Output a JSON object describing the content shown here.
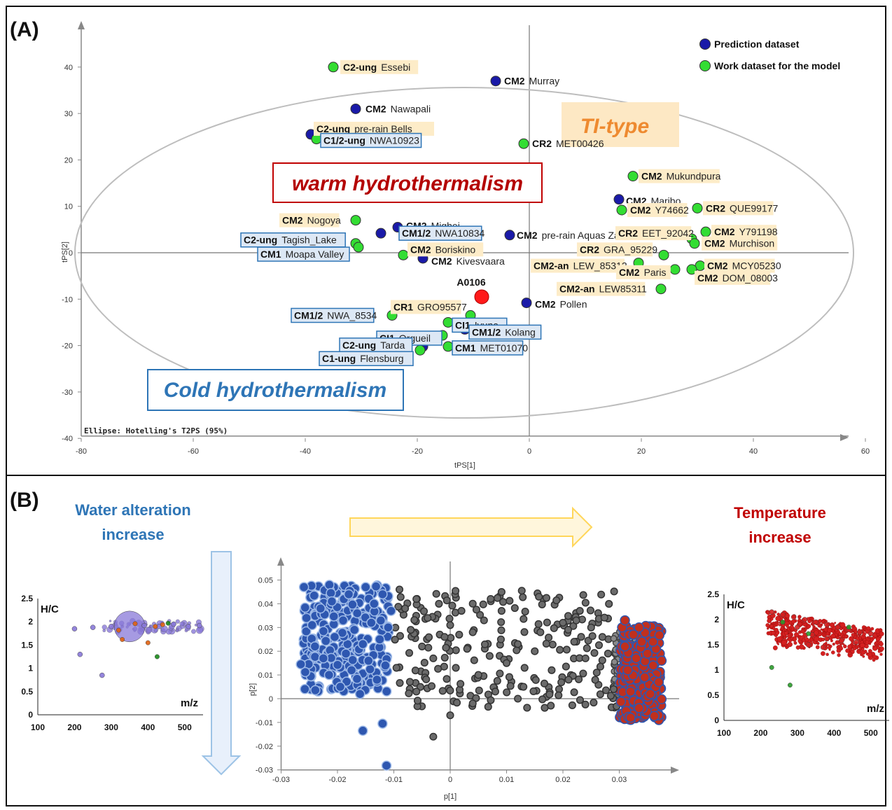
{
  "panel_a": {
    "label": "(A)",
    "ellipse_note": "Ellipse: Hotelling's T2PS (95%)",
    "legend": [
      {
        "label": "Prediction dataset",
        "color": "#1a1aa8"
      },
      {
        "label": "Work dataset for the model",
        "color": "#33dd33"
      }
    ],
    "annotations": {
      "ti_type": "TI-type",
      "warm": "warm hydrothermalism",
      "cold": "Cold hydrothermalism",
      "sample": "A0106"
    }
  },
  "panel_b": {
    "label": "(B)",
    "water_title": [
      "Water alteration",
      "increase"
    ],
    "temp_title": [
      "Temperature",
      "increase"
    ],
    "y_hc": "H/C",
    "x_mz": "m/z"
  },
  "chart_data": [
    {
      "type": "scatter",
      "xlabel": "tPS[1]",
      "ylabel": "tPS[2]",
      "xlim": [
        -80,
        70
      ],
      "ylim": [
        -40,
        48
      ],
      "x_ticks": [
        -80,
        -60,
        -40,
        -20,
        0,
        20,
        40,
        60
      ],
      "y_ticks": [
        -40,
        -30,
        -20,
        -10,
        0,
        10,
        20,
        30,
        40
      ],
      "series": [
        {
          "name": "Prediction dataset",
          "color": "#1a1aa8"
        },
        {
          "name": "Work dataset for the model",
          "color": "#33dd33"
        }
      ],
      "points": [
        {
          "x": -35,
          "y": 40,
          "s": 1,
          "type": "C2-ung",
          "name": "Essebi",
          "box": "tan"
        },
        {
          "x": -6,
          "y": 37,
          "s": 0,
          "type": "CM2",
          "name": "Murray",
          "box": "none"
        },
        {
          "x": -31,
          "y": 31,
          "s": 0,
          "type": "CM2",
          "name": "Nawapali",
          "box": "none"
        },
        {
          "x": -39,
          "y": 25.5,
          "s": 0,
          "type": "C2-ung",
          "name": "pre-rain Bells",
          "box": "tan"
        },
        {
          "x": -38,
          "y": 24.5,
          "s": 1,
          "type": "C1/2-ung",
          "name": "NWA10923",
          "box": "blue"
        },
        {
          "x": -1,
          "y": 23.5,
          "s": 1,
          "type": "CR2",
          "name": "MET00426",
          "box": "none"
        },
        {
          "x": 18.5,
          "y": 16.5,
          "s": 1,
          "type": "CM2",
          "name": "Mukundpura",
          "box": "tan"
        },
        {
          "x": 16,
          "y": 11.5,
          "s": 0,
          "type": "CM2",
          "name": "Maribo",
          "box": "none"
        },
        {
          "x": 16.5,
          "y": 9.2,
          "s": 1,
          "type": "CM2",
          "name": "Y74662",
          "box": "tan"
        },
        {
          "x": 30,
          "y": 9.6,
          "s": 1,
          "type": "CR2",
          "name": "QUE99177",
          "box": "tan"
        },
        {
          "x": -31,
          "y": 7,
          "s": 1,
          "type": "CM2",
          "name": "Nogoya",
          "box": "tan"
        },
        {
          "x": -23.5,
          "y": 5.5,
          "s": 0,
          "type": "CM2",
          "name": "Mighei",
          "box": "none"
        },
        {
          "x": -26.5,
          "y": 4.2,
          "s": 0,
          "type": "CM1/2",
          "name": "NWA10834",
          "box": "blue"
        },
        {
          "x": -3.5,
          "y": 3.8,
          "s": 0,
          "type": "CM2",
          "name": "pre-rain Aquas Zarcas",
          "box": "none"
        },
        {
          "x": 29,
          "y": 3,
          "s": 1,
          "type": "CR2",
          "name": "EET_92042",
          "box": "tan"
        },
        {
          "x": 31.5,
          "y": 4.5,
          "s": 1,
          "type": "CM2",
          "name": "Y791198",
          "box": "tan"
        },
        {
          "x": 29.5,
          "y": 2,
          "s": 1,
          "type": "CM2",
          "name": "Murchison",
          "box": "tan"
        },
        {
          "x": -31,
          "y": 2,
          "s": 1,
          "type": "C2-ung",
          "name": "Tagish_Lake",
          "box": "blue"
        },
        {
          "x": -30.5,
          "y": 1.2,
          "s": 1,
          "type": "CM1",
          "name": "Moapa Valley",
          "box": "blue"
        },
        {
          "x": -22.5,
          "y": -0.5,
          "s": 1,
          "type": "CM2",
          "name": "Boriskino",
          "box": "tan"
        },
        {
          "x": -19,
          "y": -1.2,
          "s": 0,
          "type": "CM2",
          "name": "Kivesvaara",
          "box": "none"
        },
        {
          "x": 24,
          "y": -0.5,
          "s": 1,
          "type": "CR2",
          "name": "GRA_95229",
          "box": "tan"
        },
        {
          "x": 19.5,
          "y": -2.2,
          "s": 1,
          "type": "CM2-an",
          "name": "LEW_85312",
          "box": "tan"
        },
        {
          "x": 30.5,
          "y": -2.8,
          "s": 1,
          "type": "CM2",
          "name": "MCY05230",
          "box": "tan"
        },
        {
          "x": 26,
          "y": -3.6,
          "s": 1,
          "type": "CM2",
          "name": "Paris",
          "box": "tan"
        },
        {
          "x": 29,
          "y": -3.6,
          "s": 1,
          "type": "CM2",
          "name": "DOM_08003",
          "box": "tan"
        },
        {
          "x": 23.5,
          "y": -7.8,
          "s": 1,
          "type": "CM2-an",
          "name": "LEW85311",
          "box": "tan"
        },
        {
          "x": -8.5,
          "y": -9.5,
          "s": 2,
          "type": "",
          "name": "A0106",
          "box": "none"
        },
        {
          "x": -0.5,
          "y": -10.8,
          "s": 0,
          "type": "CM2",
          "name": "Pollen",
          "box": "none"
        },
        {
          "x": -24.5,
          "y": -13.5,
          "s": 1,
          "type": "CM1/2",
          "name": "NWA_8534",
          "box": "blue"
        },
        {
          "x": -10.5,
          "y": -13.5,
          "s": 1,
          "type": "CR1",
          "name": "GRO95577",
          "box": "tan"
        },
        {
          "x": -14.5,
          "y": -15,
          "s": 1,
          "type": "CI1",
          "name": "Ivuna",
          "box": "blue"
        },
        {
          "x": -11.5,
          "y": -16.5,
          "s": 0,
          "type": "CM1/2",
          "name": "Kolang",
          "box": "blue"
        },
        {
          "x": -15.5,
          "y": -17.8,
          "s": 1,
          "type": "CI1",
          "name": "Orgueil",
          "box": "blue"
        },
        {
          "x": -19,
          "y": -20.2,
          "s": 0,
          "type": "C2-ung",
          "name": "Tarda",
          "box": "blue"
        },
        {
          "x": -14.5,
          "y": -20.2,
          "s": 1,
          "type": "CM1",
          "name": "MET01070",
          "box": "blue"
        },
        {
          "x": -19.5,
          "y": -21,
          "s": 1,
          "type": "C1-ung",
          "name": "Flensburg",
          "box": "blue"
        }
      ]
    },
    {
      "type": "scatter",
      "xlabel": "p[1]",
      "ylabel": "p[2]",
      "xlim": [
        -0.03,
        0.04
      ],
      "ylim": [
        -0.03,
        0.06
      ],
      "x_ticks": [
        -0.03,
        -0.02,
        -0.01,
        0,
        0.01,
        0.02,
        0.03
      ],
      "y_ticks": [
        -0.03,
        -0.02,
        -0.01,
        0,
        0.01,
        0.02,
        0.03,
        0.04,
        0.05
      ],
      "series": [
        {
          "name": "",
          "color": "#2e57b0",
          "points": [
            [
              -0.0265,
              0.0145
            ],
            [
              -0.0255,
              0.034
            ],
            [
              -0.0245,
              0.031
            ],
            [
              -0.024,
              0.022
            ],
            [
              -0.023,
              0.038
            ],
            [
              -0.0225,
              0.017
            ],
            [
              -0.0215,
              0.01
            ],
            [
              -0.021,
              0.041
            ],
            [
              -0.0205,
              0.026
            ],
            [
              -0.0195,
              0.005
            ],
            [
              -0.019,
              0.033
            ],
            [
              -0.0185,
              0.019
            ],
            [
              -0.018,
              0.044
            ],
            [
              -0.0175,
              0.012
            ],
            [
              -0.017,
              0.029
            ],
            [
              -0.0165,
              0.036
            ],
            [
              -0.016,
              0.002
            ],
            [
              -0.0155,
              0.023
            ],
            [
              -0.015,
              0.047
            ],
            [
              -0.0145,
              0.016
            ],
            [
              -0.014,
              0.032
            ],
            [
              -0.0135,
              0.04
            ],
            [
              -0.013,
              0.008
            ],
            [
              -0.0125,
              0.025
            ],
            [
              -0.012,
              0.044
            ],
            [
              -0.0115,
              0.014
            ],
            [
              -0.011,
              0.03
            ],
            [
              -0.0105,
              0.037
            ],
            [
              -0.0155,
              -0.0135
            ],
            [
              -0.012,
              -0.0105
            ],
            [
              -0.0113,
              -0.0282
            ]
          ]
        },
        {
          "name": "",
          "color": "#6b6b6b",
          "points": [
            [
              -0.009,
              0.046
            ],
            [
              -0.008,
              0.038
            ],
            [
              -0.007,
              0.029
            ],
            [
              -0.006,
              0.042
            ],
            [
              -0.005,
              0.022
            ],
            [
              -0.004,
              0.034
            ],
            [
              -0.003,
              0.017
            ],
            [
              -0.002,
              0.04
            ],
            [
              -0.001,
              0.026
            ],
            [
              0.0,
              0.031
            ],
            [
              0.001,
              0.013
            ],
            [
              0.002,
              0.037
            ],
            [
              0.003,
              0.021
            ],
            [
              0.004,
              0.028
            ],
            [
              0.005,
              0.01
            ],
            [
              0.006,
              0.033
            ],
            [
              0.007,
              0.018
            ],
            [
              0.008,
              0.003
            ],
            [
              0.009,
              0.025
            ],
            [
              0.01,
              0.015
            ],
            [
              0.012,
              0.023
            ],
            [
              0.013,
              0.005
            ],
            [
              0.015,
              0.02
            ],
            [
              0.016,
              0.028
            ],
            [
              0.018,
              0.012
            ],
            [
              0.02,
              0.032
            ],
            [
              0.021,
              0.008
            ],
            [
              0.022,
              0.024
            ],
            [
              0.023,
              0.037
            ],
            [
              0.024,
              0.017
            ],
            [
              0.025,
              0.03
            ],
            [
              0.026,
              0.011
            ],
            [
              0.027,
              0.026
            ],
            [
              0.028,
              0.019
            ],
            [
              0.029,
              0.004
            ],
            [
              -0.003,
              -0.016
            ],
            [
              0.0,
              -0.007
            ],
            [
              0.004,
              -0.002
            ],
            [
              -0.006,
              0.003
            ],
            [
              0.012,
              0.0
            ],
            [
              0.0127,
              0.0455
            ]
          ]
        },
        {
          "name": "",
          "color": "#c0301e",
          "points": [
            [
              0.0305,
              0.03
            ],
            [
              0.031,
              0.022
            ],
            [
              0.0315,
              0.012
            ],
            [
              0.032,
              0.003
            ],
            [
              0.0325,
              0.027
            ],
            [
              0.033,
              0.017
            ],
            [
              0.0335,
              -0.004
            ],
            [
              0.034,
              0.024
            ],
            [
              0.0345,
              0.009
            ],
            [
              0.035,
              0.019
            ],
            [
              0.0355,
              0.002
            ],
            [
              0.036,
              0.014
            ],
            [
              0.0365,
              0.021
            ],
            [
              0.037,
              0.007
            ],
            [
              0.0375,
              0.016
            ],
            [
              0.031,
              0.033
            ],
            [
              0.0335,
              0.03
            ],
            [
              0.032,
              -0.008
            ],
            [
              0.036,
              0.024
            ]
          ]
        }
      ]
    },
    {
      "type": "scatter",
      "xlabel": "m/z",
      "ylabel": "H/C",
      "xlim": [
        100,
        550
      ],
      "ylim": [
        0,
        2.5
      ],
      "x_ticks": [
        100,
        200,
        300,
        400,
        500
      ],
      "y_ticks": [
        0,
        0.5,
        1,
        1.5,
        2,
        2.5
      ],
      "series": [
        {
          "name": "",
          "color": "#8878d8",
          "points": [
            [
              350,
              1.9
            ],
            [
              300,
              1.9
            ],
            [
              390,
              1.92
            ],
            [
              430,
              1.9
            ],
            [
              470,
              1.95
            ],
            [
              510,
              1.9
            ],
            [
              540,
              1.92
            ],
            [
              250,
              1.88
            ],
            [
              200,
              1.85
            ],
            [
              215,
              1.3
            ],
            [
              275,
              0.85
            ]
          ]
        },
        {
          "name": "",
          "color": "#e06010",
          "points": [
            [
              365,
              1.96
            ],
            [
              320,
              1.82
            ],
            [
              420,
              1.9
            ],
            [
              440,
              1.94
            ],
            [
              330,
              1.62
            ],
            [
              400,
              1.55
            ]
          ]
        },
        {
          "name": "",
          "color": "#1a8a1a",
          "points": [
            [
              455,
              1.97
            ],
            [
              425,
              1.25
            ]
          ]
        }
      ]
    },
    {
      "type": "scatter",
      "xlabel": "m/z",
      "ylabel": "H/C",
      "xlim": [
        100,
        550
      ],
      "ylim": [
        0,
        2.5
      ],
      "x_ticks": [
        100,
        200,
        300,
        400,
        500
      ],
      "y_ticks": [
        0,
        0.5,
        1,
        1.5,
        2,
        2.5
      ],
      "series": [
        {
          "name": "",
          "color": "#d42020",
          "points": [
            [
              230,
              2.15
            ],
            [
              260,
              2.1
            ],
            [
              290,
              2.05
            ],
            [
              320,
              2.0
            ],
            [
              350,
              1.95
            ],
            [
              380,
              1.9
            ],
            [
              410,
              1.85
            ],
            [
              440,
              1.8
            ],
            [
              470,
              1.75
            ],
            [
              500,
              1.72
            ],
            [
              300,
              1.85
            ],
            [
              340,
              1.7
            ],
            [
              380,
              1.62
            ],
            [
              420,
              1.58
            ],
            [
              460,
              1.55
            ],
            [
              330,
              1.5
            ],
            [
              370,
              1.45
            ]
          ]
        },
        {
          "name": "",
          "color": "#2a9a2a",
          "points": [
            [
              260,
              1.95
            ],
            [
              440,
              1.85
            ],
            [
              330,
              1.72
            ],
            [
              230,
              1.05
            ],
            [
              280,
              0.7
            ]
          ]
        }
      ]
    }
  ]
}
